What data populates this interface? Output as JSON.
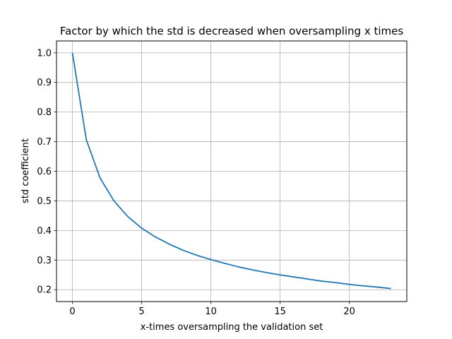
{
  "chart_data": {
    "type": "line",
    "title": "Factor by which the std is decreased when oversampling x times",
    "xlabel": "x-times oversampling the validation set",
    "ylabel": "std coefficient",
    "xlim": [
      -1.15,
      24.15
    ],
    "ylim": [
      0.16,
      1.04
    ],
    "xticks": [
      0,
      5,
      10,
      15,
      20
    ],
    "yticks": [
      0.2,
      0.3,
      0.4,
      0.5,
      0.6,
      0.7,
      0.8,
      0.9,
      1.0
    ],
    "ytick_labels": [
      "0.2",
      "0.3",
      "0.4",
      "0.5",
      "0.6",
      "0.7",
      "0.8",
      "0.9",
      "1.0"
    ],
    "grid": true,
    "line_color": "#1f77b4",
    "grid_color": "#b0b0b0",
    "series": [
      {
        "x": [
          0,
          1,
          2,
          3,
          4,
          5,
          6,
          7,
          8,
          9,
          10,
          11,
          12,
          13,
          14,
          15,
          16,
          17,
          18,
          19,
          20,
          21,
          22,
          23
        ],
        "y": [
          1.0,
          0.707,
          0.577,
          0.5,
          0.447,
          0.408,
          0.378,
          0.354,
          0.333,
          0.316,
          0.302,
          0.289,
          0.277,
          0.267,
          0.258,
          0.25,
          0.243,
          0.236,
          0.229,
          0.224,
          0.218,
          0.213,
          0.209,
          0.204
        ]
      }
    ]
  }
}
